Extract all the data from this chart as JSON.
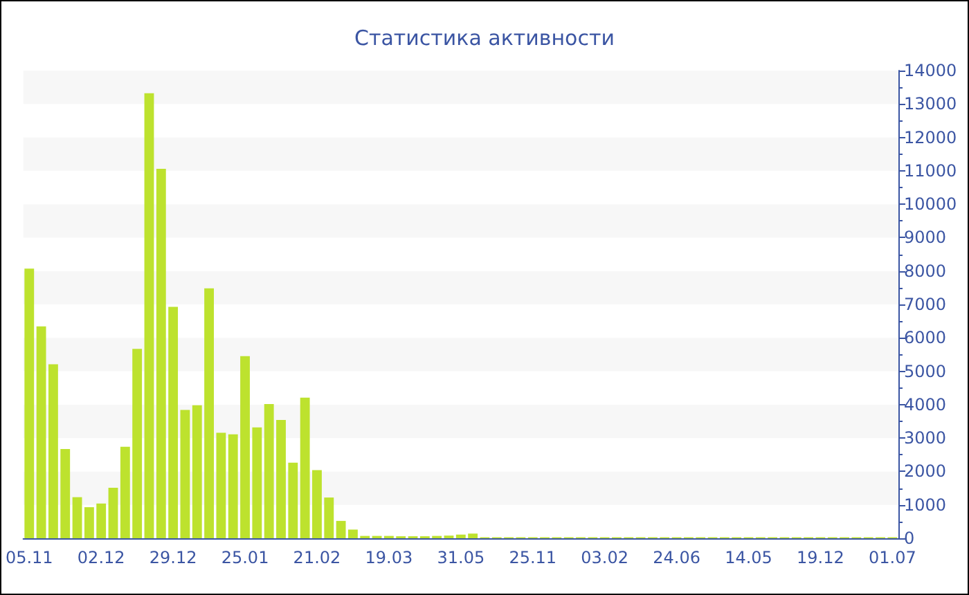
{
  "chart_data": {
    "type": "bar",
    "title": "Статистика активности",
    "categories": [
      "05.11",
      null,
      null,
      null,
      null,
      null,
      "02.12",
      null,
      null,
      null,
      null,
      null,
      "29.12",
      null,
      null,
      null,
      null,
      null,
      "25.01",
      null,
      null,
      null,
      null,
      null,
      "21.02",
      null,
      null,
      null,
      null,
      null,
      "19.03",
      null,
      null,
      null,
      null,
      null,
      "31.05",
      null,
      null,
      null,
      null,
      null,
      "25.11",
      null,
      null,
      null,
      null,
      null,
      "03.02",
      null,
      null,
      null,
      null,
      null,
      "24.06",
      null,
      null,
      null,
      null,
      null,
      "14.05",
      null,
      null,
      null,
      null,
      null,
      "19.12",
      null,
      null,
      null,
      null,
      null,
      "01.07"
    ],
    "values": [
      8070,
      6340,
      5210,
      2670,
      1230,
      930,
      1040,
      1510,
      2740,
      5670,
      13320,
      11060,
      6930,
      3840,
      3980,
      7480,
      3160,
      3110,
      5450,
      3320,
      4020,
      3540,
      2260,
      4210,
      2040,
      1220,
      520,
      260,
      70,
      70,
      70,
      60,
      60,
      60,
      70,
      80,
      110,
      140,
      30,
      30,
      30,
      30,
      30,
      30,
      30,
      30,
      30,
      30,
      30,
      30,
      30,
      30,
      30,
      30,
      30,
      30,
      30,
      30,
      30,
      30,
      30,
      30,
      30,
      30,
      30,
      30,
      30,
      30,
      30,
      30,
      30,
      30,
      30
    ],
    "color": "#bde22e",
    "ylim": [
      0,
      14000
    ],
    "yticks": [
      0,
      1000,
      2000,
      3000,
      4000,
      5000,
      6000,
      7000,
      8000,
      9000,
      10000,
      11000,
      12000,
      13000,
      14000
    ]
  }
}
